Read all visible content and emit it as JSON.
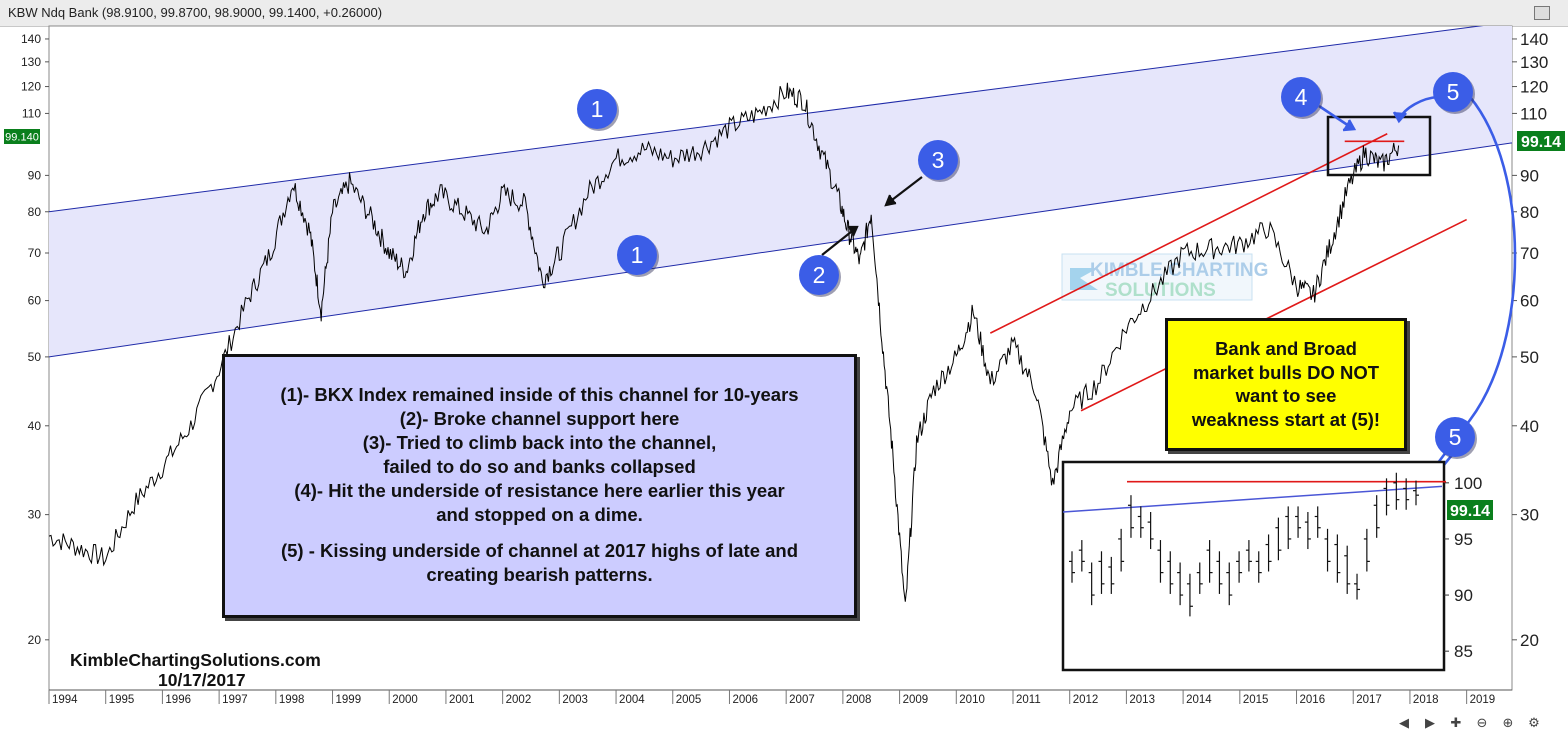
{
  "window": {
    "title": "KBW Ndq Bank (98.9100, 99.8700, 98.9000, 99.1400, +0.26000)"
  },
  "colors": {
    "channel_fill": "#e6e6fb",
    "channel_line": "#1f2aa8",
    "price_line": "#000000",
    "red_lines": "#e01919",
    "badge": "#3b5de7",
    "note_box": "#ccccff",
    "callout_box": "#ffff00",
    "price_tag": "#0a7f1c"
  },
  "chart_data": {
    "type": "line",
    "series_name": "",
    "x_labels": [
      "1994",
      "1995",
      "1996",
      "1997",
      "1998",
      "1999",
      "2000",
      "2001",
      "2002",
      "2003",
      "2004",
      "2005",
      "2006",
      "2007",
      "2008",
      "2009",
      "2010",
      "2011",
      "2012",
      "2013",
      "2014",
      "2015",
      "2016",
      "2017",
      "2018",
      "2019"
    ],
    "y_ticks_left": [
      20,
      30,
      40,
      50,
      60,
      70,
      80,
      90,
      110,
      120,
      130,
      140
    ],
    "y_ticks_right": [
      20,
      30,
      40,
      50,
      60,
      70,
      80,
      90,
      110,
      120,
      130,
      140
    ],
    "y_scale": "log",
    "ylim": [
      17,
      146
    ],
    "xlim": [
      1994.0,
      2019.8
    ],
    "last_price_left": "99.140",
    "last_price_right": "99.14",
    "approx_closes": [
      [
        1994.0,
        28
      ],
      [
        1994.5,
        27
      ],
      [
        1995.0,
        26
      ],
      [
        1995.5,
        31
      ],
      [
        1996.0,
        35
      ],
      [
        1996.5,
        40
      ],
      [
        1997.0,
        48
      ],
      [
        1997.5,
        60
      ],
      [
        1997.9,
        70
      ],
      [
        1998.3,
        88
      ],
      [
        1998.6,
        75
      ],
      [
        1998.8,
        58
      ],
      [
        1999.0,
        80
      ],
      [
        1999.3,
        88
      ],
      [
        1999.7,
        78
      ],
      [
        2000.0,
        70
      ],
      [
        2000.3,
        66
      ],
      [
        2000.6,
        80
      ],
      [
        2000.9,
        85
      ],
      [
        2001.3,
        80
      ],
      [
        2001.7,
        75
      ],
      [
        2002.0,
        85
      ],
      [
        2002.4,
        82
      ],
      [
        2002.7,
        64
      ],
      [
        2003.0,
        70
      ],
      [
        2003.5,
        85
      ],
      [
        2004.0,
        95
      ],
      [
        2004.5,
        98
      ],
      [
        2005.0,
        95
      ],
      [
        2005.5,
        98
      ],
      [
        2006.0,
        105
      ],
      [
        2006.5,
        110
      ],
      [
        2007.0,
        118
      ],
      [
        2007.3,
        115
      ],
      [
        2007.6,
        98
      ],
      [
        2007.9,
        85
      ],
      [
        2008.1,
        75
      ],
      [
        2008.3,
        68
      ],
      [
        2008.5,
        80
      ],
      [
        2008.7,
        52
      ],
      [
        2008.9,
        35
      ],
      [
        2009.1,
        22
      ],
      [
        2009.3,
        38
      ],
      [
        2009.6,
        45
      ],
      [
        2010.0,
        50
      ],
      [
        2010.3,
        58
      ],
      [
        2010.6,
        46
      ],
      [
        2011.0,
        52
      ],
      [
        2011.4,
        45
      ],
      [
        2011.7,
        33
      ],
      [
        2012.0,
        42
      ],
      [
        2012.5,
        46
      ],
      [
        2013.0,
        55
      ],
      [
        2013.5,
        62
      ],
      [
        2014.0,
        70
      ],
      [
        2014.5,
        71
      ],
      [
        2015.0,
        72
      ],
      [
        2015.5,
        76
      ],
      [
        2016.0,
        63
      ],
      [
        2016.3,
        61
      ],
      [
        2016.6,
        72
      ],
      [
        2016.9,
        86
      ],
      [
        2017.2,
        97
      ],
      [
        2017.5,
        93
      ],
      [
        2017.8,
        99.14
      ]
    ],
    "channel": {
      "upper": [
        [
          1994.0,
          80
        ],
        [
          2019.8,
          148
        ]
      ],
      "lower": [
        [
          1994.0,
          50
        ],
        [
          2019.8,
          100
        ]
      ]
    },
    "red_channel": {
      "upper": [
        [
          2010.6,
          54
        ],
        [
          2017.6,
          103
        ]
      ],
      "lower": [
        [
          2012.2,
          42
        ],
        [
          2019.0,
          78
        ]
      ]
    },
    "resistance_2017": 100.5
  },
  "badges": [
    {
      "label": "1"
    },
    {
      "label": "1"
    },
    {
      "label": "2"
    },
    {
      "label": "3"
    },
    {
      "label": "4"
    },
    {
      "label": "5"
    },
    {
      "label": "5"
    }
  ],
  "notes": {
    "line1": "(1)- BKX Index remained inside of this channel for 10-years",
    "line2": "(2)- Broke channel support here",
    "line3": "(3)- Tried to climb back into the channel,",
    "line4": "failed to do so and banks collapsed",
    "line5": "(4)- Hit the underside of resistance here earlier this year",
    "line6": "and stopped on a dime.",
    "line7": "(5) - Kissing underside of channel at 2017 highs of late and",
    "line8": "creating bearish patterns."
  },
  "callout": {
    "line1": "Bank and Broad",
    "line2": "market bulls DO NOT",
    "line3": "want to see",
    "line4": "weakness start at (5)!"
  },
  "watermark": {
    "line1": "KIMBLE CHARTING",
    "line2": "SOLUTIONS"
  },
  "credit": {
    "site": "KimbleChartingSolutions.com",
    "date": "10/17/2017"
  },
  "inset": {
    "y_ticks": [
      85,
      90,
      95,
      100
    ],
    "last_price": "99.14",
    "bars": [
      [
        93,
        92
      ],
      [
        94,
        93
      ],
      [
        92,
        90
      ],
      [
        93,
        91
      ],
      [
        92.5,
        91
      ],
      [
        95,
        93
      ],
      [
        98,
        96
      ],
      [
        97,
        96
      ],
      [
        96.5,
        95
      ],
      [
        94,
        92
      ],
      [
        93,
        91
      ],
      [
        92,
        90
      ],
      [
        91,
        89
      ],
      [
        92,
        91
      ],
      [
        94,
        92
      ],
      [
        93,
        91
      ],
      [
        92,
        90
      ],
      [
        93,
        92
      ],
      [
        94,
        93
      ],
      [
        93,
        92
      ],
      [
        94.5,
        93
      ],
      [
        96,
        94
      ],
      [
        97,
        95
      ],
      [
        97,
        96
      ],
      [
        96.5,
        95
      ],
      [
        97,
        96
      ],
      [
        95,
        93
      ],
      [
        94.5,
        92
      ],
      [
        93.5,
        91
      ],
      [
        91,
        90.5
      ],
      [
        95,
        93
      ],
      [
        98,
        96
      ],
      [
        99.5,
        98
      ],
      [
        100,
        98.5
      ],
      [
        99.5,
        98.5
      ],
      [
        99.3,
        98.9
      ]
    ]
  },
  "toolbar_icons": [
    "arrow-left-icon",
    "arrow-right-icon",
    "move-icon",
    "zoom-out-icon",
    "zoom-in-icon",
    "settings-icon"
  ]
}
